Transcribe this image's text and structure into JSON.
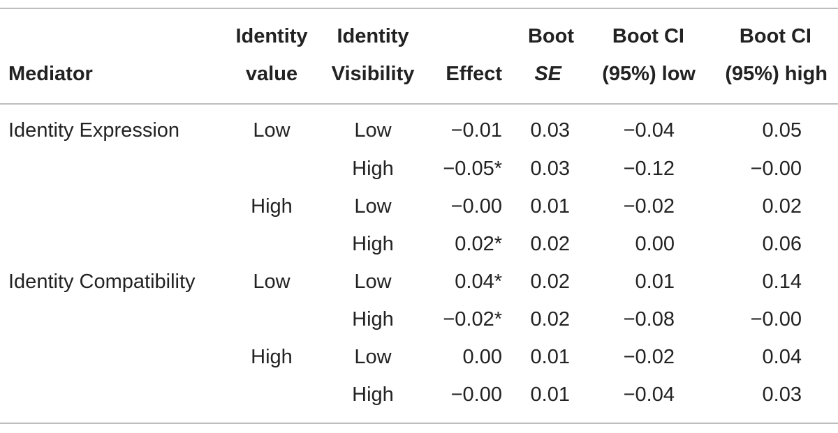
{
  "table": {
    "header": {
      "mediator": "Mediator",
      "identity_value": [
        "Identity",
        "value"
      ],
      "identity_visibility": [
        "Identity",
        "Visibility"
      ],
      "effect": "Effect",
      "boot_se": [
        "Boot",
        "SE"
      ],
      "ci_low": [
        "Boot CI",
        "(95%) low"
      ],
      "ci_high": [
        "Boot CI",
        "(95%) high"
      ]
    },
    "rows": [
      {
        "mediator": "Identity Expression",
        "value": "Low",
        "visibility": "Low",
        "effect": "−0.01",
        "se": "0.03",
        "low": "−0.04",
        "high": "0.05"
      },
      {
        "mediator": "",
        "value": "",
        "visibility": "High",
        "effect": "−0.05*",
        "se": "0.03",
        "low": "−0.12",
        "high": "−0.00"
      },
      {
        "mediator": "",
        "value": "High",
        "visibility": "Low",
        "effect": "−0.00",
        "se": "0.01",
        "low": "−0.02",
        "high": "0.02"
      },
      {
        "mediator": "",
        "value": "",
        "visibility": "High",
        "effect": "0.02*",
        "se": "0.02",
        "low": "0.00",
        "high": "0.06"
      },
      {
        "mediator": "Identity Compatibility",
        "value": "Low",
        "visibility": "Low",
        "effect": "0.04*",
        "se": "0.02",
        "low": "0.01",
        "high": "0.14"
      },
      {
        "mediator": "",
        "value": "",
        "visibility": "High",
        "effect": "−0.02*",
        "se": "0.02",
        "low": "−0.08",
        "high": "−0.00"
      },
      {
        "mediator": "",
        "value": "High",
        "visibility": "Low",
        "effect": "0.00",
        "se": "0.01",
        "low": "−0.02",
        "high": "0.04"
      },
      {
        "mediator": "",
        "value": "",
        "visibility": "High",
        "effect": "−0.00",
        "se": "0.01",
        "low": "−0.04",
        "high": "0.03"
      }
    ]
  }
}
